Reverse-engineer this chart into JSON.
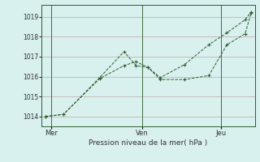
{
  "xlabel": "Pression niveau de la mer( hPa )",
  "background_color": "#d8f0ee",
  "grid_color": "#c0a8a8",
  "line_color": "#2d5e2d",
  "spine_color": "#2d5e2d",
  "ylim": [
    1013.5,
    1019.6
  ],
  "yticks": [
    1014,
    1015,
    1016,
    1017,
    1018,
    1019
  ],
  "xlim": [
    -0.3,
    17.3
  ],
  "xtick_positions": [
    0.5,
    8.0,
    14.5
  ],
  "xtick_labels": [
    "Mer",
    "Ven",
    "Jeu"
  ],
  "vline_positions": [
    0.5,
    8.0,
    14.5
  ],
  "line1_x": [
    0.0,
    1.5,
    4.5,
    6.5,
    7.5,
    8.5,
    9.5,
    11.5,
    13.5,
    15.0,
    16.5,
    17.0
  ],
  "line1_y": [
    1014.0,
    1014.1,
    1015.9,
    1016.55,
    1016.75,
    1016.45,
    1015.85,
    1015.85,
    1016.05,
    1017.6,
    1018.15,
    1019.2
  ],
  "line2_x": [
    0.0,
    1.5,
    4.5,
    6.5,
    7.5,
    8.5,
    9.5,
    11.5,
    13.5,
    15.0,
    16.5,
    17.0
  ],
  "line2_y": [
    1014.0,
    1014.1,
    1015.95,
    1017.25,
    1016.55,
    1016.45,
    1015.95,
    1016.6,
    1017.6,
    1018.2,
    1018.85,
    1019.25
  ],
  "figsize": [
    3.2,
    2.0
  ],
  "dpi": 100,
  "tick_fontsize": 5.5,
  "xlabel_fontsize": 6.5,
  "marker_size": 2.2
}
